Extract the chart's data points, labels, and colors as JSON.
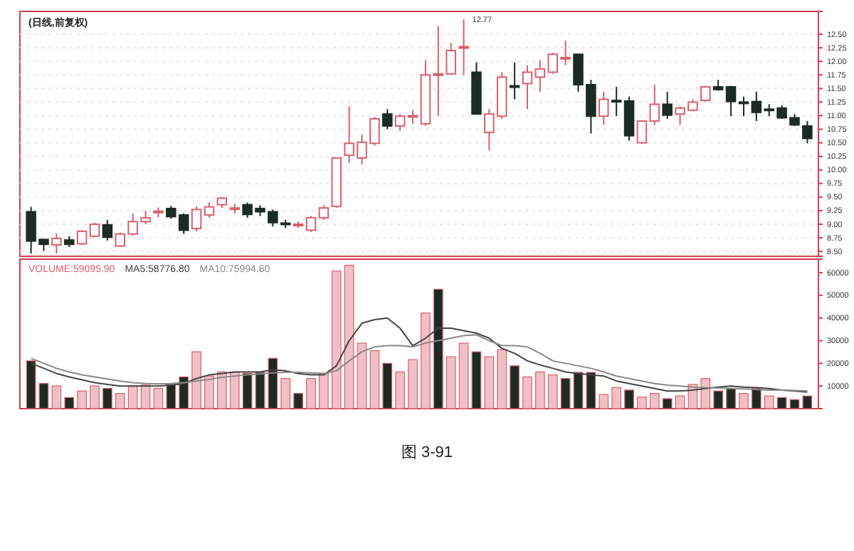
{
  "chart_data": [
    {
      "type": "candlestick",
      "title": "(日线,前复权)",
      "categories": [
        null,
        null,
        null,
        null,
        null,
        null,
        null,
        null,
        null,
        null,
        null,
        null,
        null,
        null,
        null,
        null,
        null,
        null,
        null,
        null,
        null,
        null,
        null,
        null,
        null,
        null,
        null,
        null,
        null,
        null,
        null,
        null,
        null,
        null,
        null,
        null,
        null,
        null,
        null,
        null,
        null,
        null,
        null,
        null,
        null,
        null,
        null,
        null,
        null,
        null,
        null,
        null,
        null,
        null,
        null,
        null,
        null,
        null,
        null,
        null,
        null,
        null
      ],
      "ohlc": [
        [
          9.23,
          9.32,
          8.46,
          8.69
        ],
        [
          8.72,
          8.72,
          8.51,
          8.63
        ],
        [
          8.62,
          8.83,
          8.46,
          8.74
        ],
        [
          8.71,
          8.78,
          8.58,
          8.63
        ],
        [
          8.64,
          8.89,
          8.62,
          8.87
        ],
        [
          8.78,
          9.03,
          8.76,
          9.0
        ],
        [
          8.99,
          9.08,
          8.7,
          8.76
        ],
        [
          8.6,
          8.85,
          8.58,
          8.82
        ],
        [
          8.82,
          9.2,
          8.79,
          9.05
        ],
        [
          9.05,
          9.25,
          9.0,
          9.12
        ],
        [
          9.22,
          9.31,
          9.13,
          9.24
        ],
        [
          9.29,
          9.34,
          9.1,
          9.14
        ],
        [
          9.17,
          9.2,
          8.82,
          8.89
        ],
        [
          8.92,
          9.33,
          8.87,
          9.27
        ],
        [
          9.17,
          9.4,
          9.12,
          9.32
        ],
        [
          9.36,
          9.5,
          9.3,
          9.48
        ],
        [
          9.28,
          9.38,
          9.2,
          9.3
        ],
        [
          9.36,
          9.4,
          9.12,
          9.18
        ],
        [
          9.29,
          9.35,
          9.15,
          9.23
        ],
        [
          9.23,
          9.27,
          8.96,
          9.03
        ],
        [
          9.02,
          9.08,
          8.93,
          9.0
        ],
        [
          8.98,
          9.05,
          8.93,
          9.0
        ],
        [
          8.89,
          9.15,
          8.86,
          9.12
        ],
        [
          9.12,
          9.35,
          9.08,
          9.3
        ],
        [
          9.33,
          10.22,
          9.3,
          10.22
        ],
        [
          10.27,
          11.17,
          10.13,
          10.49
        ],
        [
          10.22,
          10.65,
          10.1,
          10.51
        ],
        [
          10.49,
          10.98,
          10.45,
          10.94
        ],
        [
          11.03,
          11.12,
          10.75,
          10.81
        ],
        [
          10.81,
          11.03,
          10.72,
          10.99
        ],
        [
          10.99,
          11.1,
          10.85,
          11.0
        ],
        [
          10.85,
          12.02,
          10.81,
          11.75
        ],
        [
          11.75,
          12.65,
          10.99,
          11.77
        ],
        [
          11.77,
          12.34,
          11.75,
          12.2
        ],
        [
          12.25,
          12.77,
          11.75,
          12.27
        ],
        [
          11.8,
          11.98,
          11.03,
          11.03
        ],
        [
          10.69,
          11.12,
          10.36,
          11.03
        ],
        [
          10.99,
          11.8,
          10.94,
          11.71
        ],
        [
          11.55,
          11.98,
          11.3,
          11.54
        ],
        [
          11.59,
          11.93,
          11.12,
          11.8
        ],
        [
          11.71,
          12.02,
          11.44,
          11.86
        ],
        [
          11.8,
          12.16,
          11.77,
          12.13
        ],
        [
          12.06,
          12.38,
          11.93,
          12.07
        ],
        [
          12.13,
          12.13,
          11.44,
          11.57
        ],
        [
          11.57,
          11.66,
          10.67,
          10.99
        ],
        [
          10.99,
          11.44,
          10.83,
          11.3
        ],
        [
          11.28,
          11.53,
          10.99,
          11.27
        ],
        [
          11.27,
          11.35,
          10.54,
          10.63
        ],
        [
          10.5,
          10.92,
          10.48,
          10.9
        ],
        [
          10.9,
          11.57,
          10.83,
          11.21
        ],
        [
          11.21,
          11.44,
          10.94,
          11.01
        ],
        [
          11.03,
          11.17,
          10.83,
          11.14
        ],
        [
          11.1,
          11.3,
          11.08,
          11.25
        ],
        [
          11.28,
          11.55,
          11.26,
          11.53
        ],
        [
          11.53,
          11.66,
          11.46,
          11.48
        ],
        [
          11.53,
          11.55,
          10.99,
          11.26
        ],
        [
          11.25,
          11.35,
          10.99,
          11.24
        ],
        [
          11.26,
          11.44,
          10.9,
          11.06
        ],
        [
          11.12,
          11.21,
          10.99,
          11.1
        ],
        [
          11.14,
          11.19,
          10.94,
          10.96
        ],
        [
          10.96,
          11.03,
          10.81,
          10.83
        ],
        [
          10.81,
          10.9,
          10.49,
          10.58
        ]
      ],
      "ylim": [
        8.41,
        12.92
      ],
      "yticks": [
        {
          "value": 8.5,
          "label": "8.50"
        },
        8.75,
        {
          "value": 9,
          "label": "9.00"
        },
        9.25,
        {
          "value": 9.5,
          "label": "9.50"
        },
        9.75,
        {
          "value": 10,
          "label": "10.00"
        },
        10.25,
        {
          "value": 10.5,
          "label": "10.50"
        },
        10.75,
        {
          "value": 11,
          "label": "11.00"
        },
        11.25,
        {
          "value": 11.5,
          "label": "11.50"
        },
        11.75,
        {
          "value": 12,
          "label": "12.00"
        },
        12.25,
        {
          "value": 12.5,
          "label": "12.50"
        }
      ],
      "tick_labels": "y",
      "grid": "y",
      "annotations": [
        "12.77"
      ]
    },
    {
      "type": "bar",
      "categories": [
        null,
        null,
        null,
        null,
        null,
        null,
        null,
        null,
        null,
        null,
        null,
        null,
        null,
        null,
        null,
        null,
        null,
        null,
        null,
        null,
        null,
        null,
        null,
        null,
        null,
        null,
        null,
        null,
        null,
        null,
        null,
        null,
        null,
        null,
        null,
        null,
        null,
        null,
        null,
        null,
        null,
        null,
        null,
        null,
        null,
        null,
        null,
        null,
        null,
        null,
        null,
        null,
        null,
        null,
        null,
        null,
        null,
        null,
        null,
        null,
        null,
        null
      ],
      "series": [
        {
          "name": "VOLUME:59095.90",
          "color": "#d9606e",
          "colors": [
            "#1c2b24",
            "#1c2b24",
            "#f0c0c6",
            "#1c2b24",
            "#f0c0c6",
            "#f0c0c6",
            "#1c2b24",
            "#f0c0c6",
            "#f0c0c6",
            "#f0c0c6",
            "#f0c0c6",
            "#1c2b24",
            "#1c2b24",
            "#f0c0c6",
            "#f0c0c6",
            "#f0c0c6",
            "#f0c0c6",
            "#1c2b24",
            "#1c2b24",
            "#1c2b24",
            "#f0c0c6",
            "#1c2b24",
            "#f0c0c6",
            "#f0c0c6",
            "#f0c0c6",
            "#f0c0c6",
            "#f0c0c6",
            "#f0c0c6",
            "#1c2b24",
            "#f0c0c6",
            "#f0c0c6",
            "#f0c0c6",
            "#1c2b24",
            "#f0c0c6",
            "#f0c0c6",
            "#1c2b24",
            "#f0c0c6",
            "#f0c0c6",
            "#1c2b24",
            "#f0c0c6",
            "#f0c0c6",
            "#f0c0c6",
            "#1c2b24",
            "#1c2b24",
            "#1c2b24",
            "#f0c0c6",
            "#f0c0c6",
            "#1c2b24",
            "#f0c0c6",
            "#f0c0c6",
            "#1c2b24",
            "#f0c0c6",
            "#f0c0c6",
            "#f0c0c6",
            "#1c2b24",
            "#1c2b24",
            "#f0c0c6",
            "#1c2b24",
            "#f0c0c6",
            "#1c2b24",
            "#1c2b24",
            "#1c2b24"
          ],
          "values": [
            21100,
            11100,
            10000,
            4900,
            7800,
            10000,
            8900,
            6700,
            10000,
            10400,
            8900,
            10700,
            14000,
            25100,
            14400,
            16200,
            16200,
            15600,
            16000,
            22200,
            13300,
            6700,
            13300,
            15600,
            60700,
            63300,
            28900,
            25600,
            20000,
            16200,
            21600,
            42200,
            52700,
            22900,
            28900,
            25100,
            22900,
            26000,
            18900,
            14000,
            16200,
            14900,
            13300,
            16000,
            16000,
            6200,
            9300,
            8200,
            5100,
            6700,
            4400,
            5600,
            10700,
            13300,
            7800,
            8900,
            6700,
            8900,
            5600,
            4900,
            4000,
            5600
          ]
        },
        {
          "name": "MA5:58776.80",
          "type": "line",
          "color": "#444444",
          "values": [
            20000,
            17800,
            15500,
            14000,
            12700,
            11500,
            10700,
            10000,
            10000,
            10000,
            10000,
            10400,
            11100,
            13300,
            14900,
            15500,
            16200,
            16200,
            16200,
            17100,
            16700,
            15500,
            14900,
            14900,
            18900,
            30000,
            37700,
            39300,
            40000,
            35500,
            27800,
            31100,
            35500,
            35500,
            34400,
            33300,
            31100,
            26600,
            24400,
            21100,
            19300,
            17800,
            16200,
            15500,
            14900,
            14400,
            12200,
            11100,
            10000,
            8900,
            7800,
            7800,
            8200,
            8900,
            9500,
            10000,
            9500,
            9300,
            8900,
            8200,
            7800,
            7300
          ]
        },
        {
          "name": "MA10:75994.60",
          "type": "line",
          "color": "#888888",
          "values": [
            22200,
            20000,
            17800,
            16200,
            14900,
            14000,
            13100,
            12200,
            11500,
            11100,
            10900,
            11100,
            11500,
            12200,
            12900,
            13800,
            14400,
            14900,
            15300,
            15800,
            16000,
            16000,
            15800,
            15500,
            16700,
            21100,
            25100,
            27300,
            27800,
            27800,
            27300,
            28900,
            30000,
            31100,
            32200,
            32600,
            30000,
            27800,
            27800,
            27300,
            24400,
            21100,
            20000,
            18900,
            17800,
            16200,
            14400,
            13300,
            12200,
            11100,
            10400,
            10000,
            9500,
            9300,
            9100,
            8900,
            8700,
            8400,
            8200,
            8200,
            8000,
            7800
          ]
        }
      ],
      "ylim": [
        0,
        66000
      ],
      "yticks": [
        10000,
        20000,
        30000,
        40000,
        50000,
        60000
      ],
      "tick_labels": "y",
      "legend": "top left",
      "annotations": [
        "图 3-91"
      ]
    }
  ]
}
